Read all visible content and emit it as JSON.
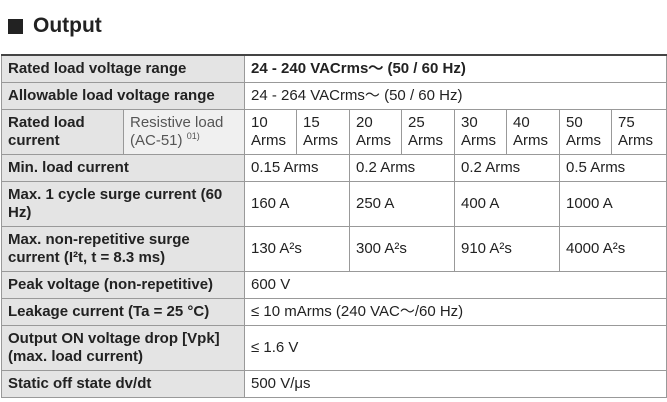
{
  "title": "Output",
  "table": {
    "rows": [
      {
        "label": "Rated load voltage range",
        "values": [
          "24 - 240 VACrms～ (50 / 60 Hz)"
        ]
      },
      {
        "label": "Allowable load voltage range",
        "values": [
          "24 - 264 VACrms～ (50 / 60 Hz)"
        ]
      },
      {
        "label": "Rated load current",
        "sublabel": "Resistive load (AC-51)",
        "note": "01)",
        "values": [
          "10 Arms",
          "15 Arms",
          "20 Arms",
          "25 Arms",
          "30 Arms",
          "40 Arms",
          "50 Arms",
          "75 Arms"
        ]
      },
      {
        "label": "Min. load current",
        "values": [
          "0.15 Arms",
          "0.2 Arms",
          "0.2 Arms",
          "0.5 Arms"
        ]
      },
      {
        "label": "Max. 1 cycle surge current (60 Hz)",
        "values": [
          "160 A",
          "250 A",
          "400 A",
          "1000 A"
        ]
      },
      {
        "label": "Max. non-repetitive surge current (I²t, t = 8.3 ms)",
        "values": [
          "130 A²s",
          "300 A²s",
          "910 A²s",
          "4000 A²s"
        ]
      },
      {
        "label": "Peak voltage (non-repetitive)",
        "values": [
          "600 V"
        ]
      },
      {
        "label": "Leakage current (Ta = 25 °C)",
        "values": [
          "≤ 10 mArms (240 VAC～/60 Hz)"
        ]
      },
      {
        "label": "Output ON voltage drop [Vpk] (max. load current)",
        "values": [
          "≤ 1.6 V"
        ]
      },
      {
        "label": "Static off state dv/dt",
        "values": [
          "500 V/μs"
        ]
      }
    ]
  }
}
